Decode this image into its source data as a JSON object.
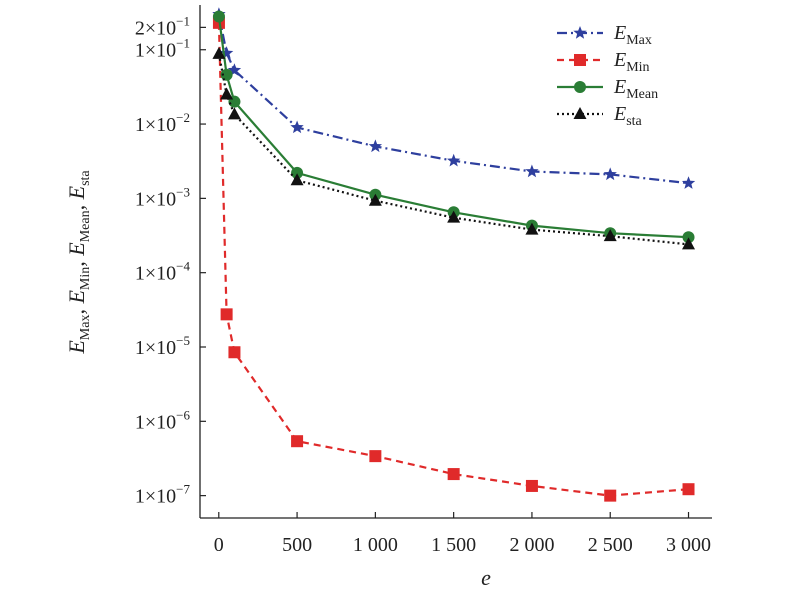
{
  "chart_data": {
    "type": "line",
    "x_title": "e",
    "y_title_parts": [
      {
        "base": "E",
        "sub": "Max"
      },
      {
        "base": "E",
        "sub": "Min"
      },
      {
        "base": "E",
        "sub": "Mean"
      },
      {
        "base": "E",
        "sub": "sta"
      }
    ],
    "xlim": [
      -120,
      3150
    ],
    "ylim": [
      5e-08,
      0.4
    ],
    "yscale": "log",
    "x_ticks": [
      {
        "value": 0,
        "label": "0"
      },
      {
        "value": 500,
        "label": "500"
      },
      {
        "value": 1000,
        "label": "1 000"
      },
      {
        "value": 1500,
        "label": "1 500"
      },
      {
        "value": 2000,
        "label": "2 000"
      },
      {
        "value": 2500,
        "label": "2 500"
      },
      {
        "value": 3000,
        "label": "3 000"
      }
    ],
    "y_ticks": [
      {
        "value": 0.2,
        "mant": "2×10",
        "exp": "−1"
      },
      {
        "value": 0.1,
        "mant": "1×10",
        "exp": "−1"
      },
      {
        "value": 0.01,
        "mant": "1×10",
        "exp": "−2"
      },
      {
        "value": 0.001,
        "mant": "1×10",
        "exp": "−3"
      },
      {
        "value": 0.0001,
        "mant": "1×10",
        "exp": "−4"
      },
      {
        "value": 1e-05,
        "mant": "1×10",
        "exp": "−5"
      },
      {
        "value": 1e-06,
        "mant": "1×10",
        "exp": "−6"
      },
      {
        "value": 1e-07,
        "mant": "1×10",
        "exp": "−7"
      }
    ],
    "legend_position": "top-right",
    "grid": false,
    "series": [
      {
        "id": "max",
        "label_base": "E",
        "label_sub": "Max",
        "color": "#2e3f9e",
        "dash": "dash-dot",
        "marker": "star",
        "x": [
          1,
          50,
          100,
          500,
          1000,
          1500,
          2000,
          2500,
          3000
        ],
        "y": [
          0.3,
          0.09,
          0.053,
          0.009,
          0.005,
          0.0032,
          0.0023,
          0.0021,
          0.0016
        ]
      },
      {
        "id": "min",
        "label_base": "E",
        "label_sub": "Min",
        "color": "#e02a2a",
        "dash": "dashed",
        "marker": "square",
        "x": [
          1,
          50,
          100,
          500,
          1000,
          1500,
          2000,
          2500,
          3000
        ],
        "y": [
          0.23,
          2.75e-05,
          8.5e-06,
          5.4e-07,
          3.4e-07,
          1.95e-07,
          1.35e-07,
          1e-07,
          1.22e-07
        ]
      },
      {
        "id": "mean",
        "label_base": "E",
        "label_sub": "Mean",
        "color": "#2a7d35",
        "dash": "solid",
        "marker": "circle",
        "x": [
          1,
          50,
          100,
          500,
          1000,
          1500,
          2000,
          2500,
          3000
        ],
        "y": [
          0.28,
          0.046,
          0.02,
          0.0022,
          0.00112,
          0.00065,
          0.00043,
          0.00034,
          0.0003
        ]
      },
      {
        "id": "sta",
        "label_base": "E",
        "label_sub": "sta",
        "color": "#111111",
        "dash": "dotted",
        "marker": "triangle",
        "x": [
          1,
          50,
          100,
          500,
          1000,
          1500,
          2000,
          2500,
          3000
        ],
        "y": [
          0.088,
          0.025,
          0.0135,
          0.00175,
          0.00093,
          0.00055,
          0.00038,
          0.00031,
          0.00024
        ]
      }
    ]
  }
}
